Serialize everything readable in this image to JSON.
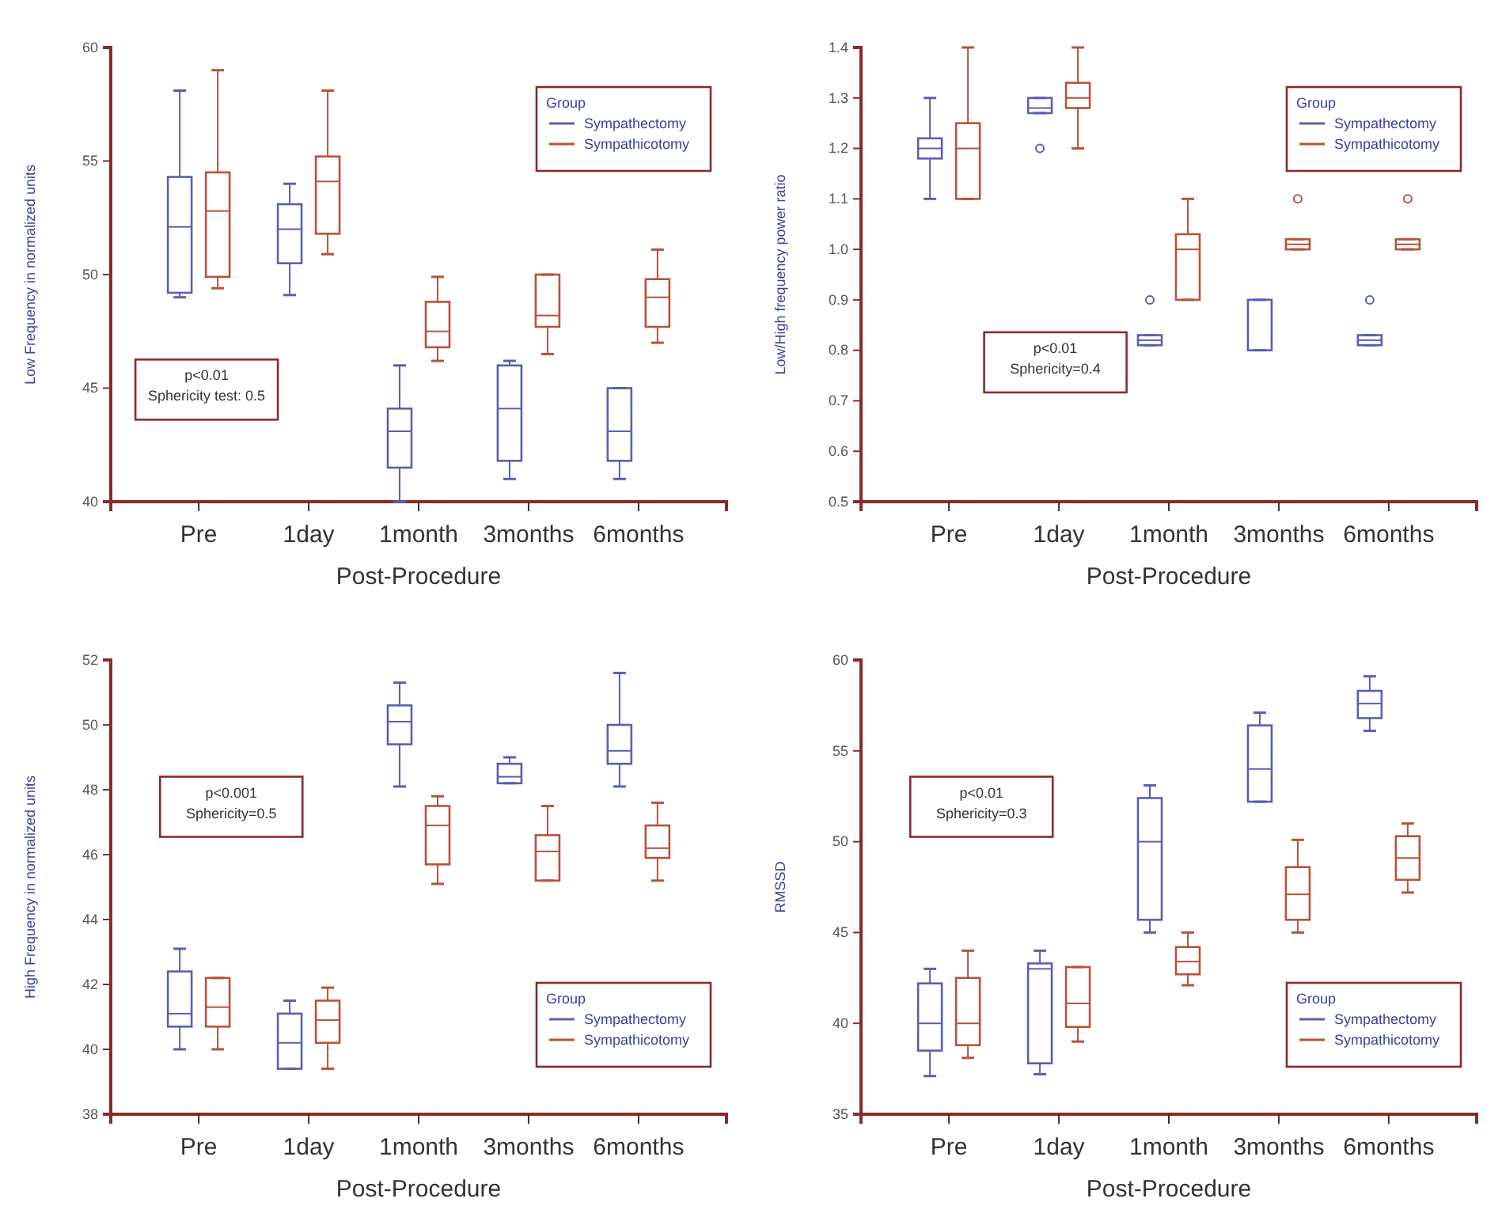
{
  "chart_data": [
    {
      "type": "box",
      "xlabel": "Post-Procedure",
      "ylabel": "Low Frequency in normalized units",
      "legend_title": "Group",
      "legend": "top right",
      "categories": [
        "Pre",
        "1day",
        "1month",
        "3months",
        "6months"
      ],
      "ylim": [
        40,
        60
      ],
      "yticks": [
        40,
        45,
        50,
        55,
        60
      ],
      "annotations": [
        "p<0.01",
        "Sphericity test: 0.5"
      ],
      "series": [
        {
          "name": "Sympathectomy",
          "color": "#5a5fb0",
          "boxes": [
            {
              "low": 49.0,
              "q1": 49.2,
              "median": 52.1,
              "q3": 54.3,
              "high": 58.1
            },
            {
              "low": 49.1,
              "q1": 50.5,
              "median": 52.0,
              "q3": 53.1,
              "high": 54.0
            },
            {
              "low": 40.0,
              "q1": 41.5,
              "median": 43.1,
              "q3": 44.1,
              "high": 46.0
            },
            {
              "low": 41.0,
              "q1": 41.8,
              "median": 44.1,
              "q3": 46.0,
              "high": 46.2
            },
            {
              "low": 41.0,
              "q1": 41.8,
              "median": 43.1,
              "q3": 45.0,
              "high": 45.0
            }
          ]
        },
        {
          "name": "Sympathicotomy",
          "color": "#b5533c",
          "boxes": [
            {
              "low": 49.4,
              "q1": 49.9,
              "median": 52.8,
              "q3": 54.5,
              "high": 59.0
            },
            {
              "low": 50.9,
              "q1": 51.8,
              "median": 54.1,
              "q3": 55.2,
              "high": 58.1
            },
            {
              "low": 46.2,
              "q1": 46.8,
              "median": 47.5,
              "q3": 48.8,
              "high": 49.9
            },
            {
              "low": 46.5,
              "q1": 47.7,
              "median": 48.2,
              "q3": 50.0,
              "high": 50.0
            },
            {
              "low": 47.0,
              "q1": 47.7,
              "median": 49.0,
              "q3": 49.8,
              "high": 51.1
            }
          ]
        }
      ]
    },
    {
      "type": "box",
      "xlabel": "Post-Procedure",
      "ylabel": "Low/High frequency power ratio",
      "legend_title": "Group",
      "legend": "top right",
      "categories": [
        "Pre",
        "1day",
        "1month",
        "3months",
        "6months"
      ],
      "ylim": [
        0.5,
        1.4
      ],
      "yticks": [
        {
          "value": 0.5,
          "label": "0.5"
        },
        {
          "value": 0.6,
          "label": "0.6"
        },
        {
          "value": 0.7,
          "label": "0.7"
        },
        {
          "value": 0.8,
          "label": "0.8"
        },
        {
          "value": 0.9,
          "label": "0.9"
        },
        {
          "value": 1.0,
          "label": "1.0"
        },
        {
          "value": 1.1,
          "label": "1.1"
        },
        {
          "value": 1.2,
          "label": "1.2"
        },
        {
          "value": 1.3,
          "label": "1.3"
        },
        {
          "value": 1.4,
          "label": "1.4"
        }
      ],
      "annotations": [
        "p<0.01",
        "Sphericity=0.4"
      ],
      "series": [
        {
          "name": "Sympathectomy",
          "color": "#5a5fb0",
          "boxes": [
            {
              "low": 1.1,
              "q1": 1.18,
              "median": 1.2,
              "q3": 1.22,
              "high": 1.3
            },
            {
              "low": 1.27,
              "q1": 1.27,
              "median": 1.28,
              "q3": 1.3,
              "high": 1.3,
              "outliers": [
                1.2
              ]
            },
            {
              "low": 0.81,
              "q1": 0.81,
              "median": 0.82,
              "q3": 0.83,
              "high": 0.83,
              "outliers": [
                0.9
              ]
            },
            {
              "low": 0.8,
              "q1": 0.8,
              "median": 0.9,
              "q3": 0.9,
              "high": 0.9
            },
            {
              "low": 0.81,
              "q1": 0.81,
              "median": 0.82,
              "q3": 0.83,
              "high": 0.83,
              "outliers": [
                0.9
              ]
            }
          ]
        },
        {
          "name": "Sympathicotomy",
          "color": "#b5533c",
          "boxes": [
            {
              "low": 1.1,
              "q1": 1.1,
              "median": 1.2,
              "q3": 1.25,
              "high": 1.4
            },
            {
              "low": 1.2,
              "q1": 1.28,
              "median": 1.3,
              "q3": 1.33,
              "high": 1.4
            },
            {
              "low": 0.9,
              "q1": 0.9,
              "median": 1.0,
              "q3": 1.03,
              "high": 1.1
            },
            {
              "low": 1.0,
              "q1": 1.0,
              "median": 1.01,
              "q3": 1.02,
              "high": 1.02,
              "outliers": [
                1.1
              ]
            },
            {
              "low": 1.0,
              "q1": 1.0,
              "median": 1.01,
              "q3": 1.02,
              "high": 1.02,
              "outliers": [
                1.1
              ]
            }
          ]
        }
      ]
    },
    {
      "type": "box",
      "xlabel": "Post-Procedure",
      "ylabel": "High Frequency in normalized units",
      "legend_title": "Group",
      "legend": "bottom right",
      "categories": [
        "Pre",
        "1day",
        "1month",
        "3months",
        "6months"
      ],
      "ylim": [
        38,
        52
      ],
      "yticks": [
        38,
        40,
        42,
        44,
        46,
        48,
        50,
        52
      ],
      "annotations": [
        "p<0.001",
        "Sphericity=0.5"
      ],
      "series": [
        {
          "name": "Sympathectomy",
          "color": "#5a5fb0",
          "boxes": [
            {
              "low": 40.0,
              "q1": 40.7,
              "median": 41.1,
              "q3": 42.4,
              "high": 43.1
            },
            {
              "low": 39.4,
              "q1": 39.4,
              "median": 40.2,
              "q3": 41.1,
              "high": 41.5
            },
            {
              "low": 48.1,
              "q1": 49.4,
              "median": 50.1,
              "q3": 50.6,
              "high": 51.3
            },
            {
              "low": 48.2,
              "q1": 48.2,
              "median": 48.4,
              "q3": 48.8,
              "high": 49.0
            },
            {
              "low": 48.1,
              "q1": 48.8,
              "median": 49.2,
              "q3": 50.0,
              "high": 51.6
            }
          ]
        },
        {
          "name": "Sympathicotomy",
          "color": "#b5533c",
          "boxes": [
            {
              "low": 40.0,
              "q1": 40.7,
              "median": 41.3,
              "q3": 42.2,
              "high": 42.2
            },
            {
              "low": 39.4,
              "q1": 40.2,
              "median": 40.9,
              "q3": 41.5,
              "high": 41.9
            },
            {
              "low": 45.1,
              "q1": 45.7,
              "median": 46.9,
              "q3": 47.5,
              "high": 47.8
            },
            {
              "low": 45.2,
              "q1": 45.2,
              "median": 46.1,
              "q3": 46.6,
              "high": 47.5
            },
            {
              "low": 45.2,
              "q1": 45.9,
              "median": 46.2,
              "q3": 46.9,
              "high": 47.6
            }
          ]
        }
      ]
    },
    {
      "type": "box",
      "xlabel": "Post-Procedure",
      "ylabel": "RMSSD",
      "legend_title": "Group",
      "legend": "bottom right",
      "categories": [
        "Pre",
        "1day",
        "1month",
        "3months",
        "6months"
      ],
      "ylim": [
        35,
        60
      ],
      "yticks": [
        35,
        40,
        45,
        50,
        55,
        60
      ],
      "annotations": [
        "p<0.01",
        "Sphericity=0.3"
      ],
      "series": [
        {
          "name": "Sympathectomy",
          "color": "#5a5fb0",
          "boxes": [
            {
              "low": 37.1,
              "q1": 38.5,
              "median": 40.0,
              "q3": 42.2,
              "high": 43.0
            },
            {
              "low": 37.2,
              "q1": 37.8,
              "median": 43.0,
              "q3": 43.3,
              "high": 44.0
            },
            {
              "low": 45.0,
              "q1": 45.7,
              "median": 50.0,
              "q3": 52.4,
              "high": 53.1
            },
            {
              "low": 52.2,
              "q1": 52.2,
              "median": 54.0,
              "q3": 56.4,
              "high": 57.1
            },
            {
              "low": 56.1,
              "q1": 56.8,
              "median": 57.6,
              "q3": 58.3,
              "high": 59.1
            }
          ]
        },
        {
          "name": "Sympathicotomy",
          "color": "#b5533c",
          "boxes": [
            {
              "low": 38.1,
              "q1": 38.8,
              "median": 40.0,
              "q3": 42.5,
              "high": 44.0
            },
            {
              "low": 39.0,
              "q1": 39.8,
              "median": 41.1,
              "q3": 43.1,
              "high": 43.1
            },
            {
              "low": 42.1,
              "q1": 42.7,
              "median": 43.4,
              "q3": 44.2,
              "high": 45.0
            },
            {
              "low": 45.0,
              "q1": 45.7,
              "median": 47.1,
              "q3": 48.6,
              "high": 50.1
            },
            {
              "low": 47.2,
              "q1": 47.9,
              "median": 49.1,
              "q3": 50.3,
              "high": 51.0
            }
          ]
        }
      ]
    }
  ]
}
